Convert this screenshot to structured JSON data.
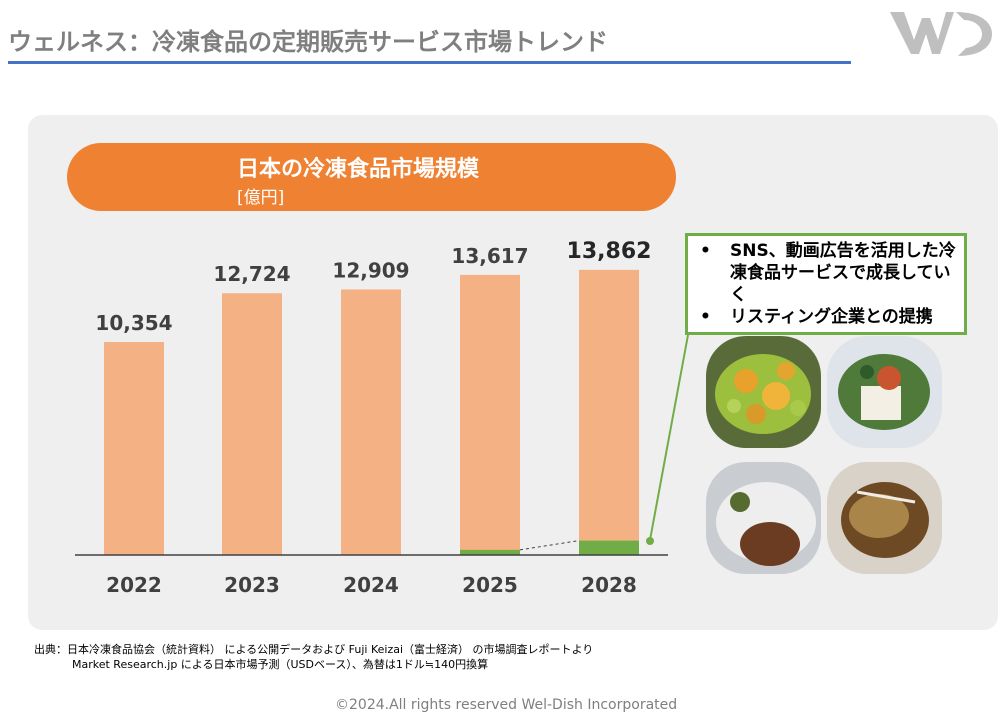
{
  "header": {
    "title": "ウェルネス：冷凍食品の定期販売サービス市場トレンド"
  },
  "banner": {
    "title": "日本の冷凍食品市場規模",
    "unit": "[億円]"
  },
  "chart_data": {
    "type": "bar",
    "categories": [
      "2022",
      "2023",
      "2024",
      "2025",
      "2028"
    ],
    "values": [
      10354,
      12724,
      12909,
      13617,
      13862
    ],
    "value_labels": [
      "10,354",
      "12,724",
      "12,909",
      "13,617",
      "13,862"
    ],
    "highlight_segment": {
      "categories": [
        "2025",
        "2028"
      ],
      "approx_values": [
        250,
        700
      ]
    },
    "ylim": [
      0,
      14800
    ],
    "colors": {
      "bar": "#f4b183",
      "highlight": "#70ad47",
      "axis": "#404040",
      "label": "#404040"
    }
  },
  "callout": {
    "items": [
      {
        "bullet": "•",
        "text": "SNS、動画広告を活用した冷凍食品サービスで成長していく"
      },
      {
        "bullet": "•",
        "text": "リスティング企業との提携"
      }
    ]
  },
  "photos": [
    "food-photo-beans-egg",
    "food-photo-tofu-greens",
    "food-photo-hamburg",
    "food-photo-fish-pack"
  ],
  "source": {
    "line1": "出典：日本冷凍食品協会（統計資料） による公開データおよび Fuji Keizai（富士経済） の市場調査レポートより",
    "line2": "Market Research.jp による日本市場予測（USDベース）、為替は1ドル≒140円換算"
  },
  "footer": {
    "copyright": "©2024.All rights reserved Wel-Dish Incorporated"
  }
}
